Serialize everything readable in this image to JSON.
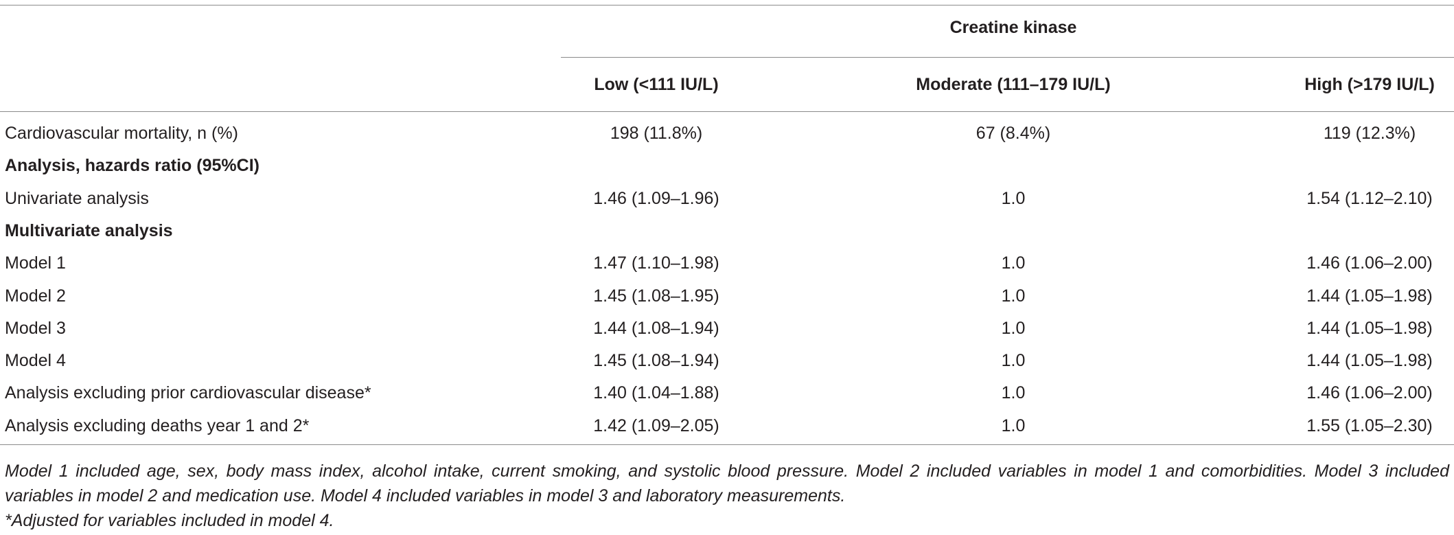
{
  "table": {
    "group_header": "Creatine kinase",
    "columns": [
      "Low (<111 IU/L)",
      "Moderate (111–179 IU/L)",
      "High (>179 IU/L)"
    ],
    "rows": [
      {
        "label": "Cardiovascular mortality, n (%)",
        "cells": [
          "198 (11.8%)",
          "67 (8.4%)",
          "119 (12.3%)"
        ]
      },
      {
        "section": "Analysis, hazards ratio (95%CI)"
      },
      {
        "label": "Univariate analysis",
        "cells": [
          "1.46 (1.09–1.96)",
          "1.0",
          "1.54 (1.12–2.10)"
        ]
      },
      {
        "section": "Multivariate analysis"
      },
      {
        "label": "Model 1",
        "cells": [
          "1.47 (1.10–1.98)",
          "1.0",
          "1.46 (1.06–2.00)"
        ]
      },
      {
        "label": "Model 2",
        "cells": [
          "1.45 (1.08–1.95)",
          "1.0",
          "1.44 (1.05–1.98)"
        ]
      },
      {
        "label": "Model 3",
        "cells": [
          "1.44 (1.08–1.94)",
          "1.0",
          "1.44 (1.05–1.98)"
        ]
      },
      {
        "label": "Model 4",
        "cells": [
          "1.45 (1.08–1.94)",
          "1.0",
          "1.44 (1.05–1.98)"
        ]
      },
      {
        "label": "Analysis excluding prior cardiovascular disease*",
        "cells": [
          "1.40 (1.04–1.88)",
          "1.0",
          "1.46 (1.06–2.00)"
        ]
      },
      {
        "label": "Analysis excluding deaths year 1 and 2*",
        "cells": [
          "1.42 (1.09–2.05)",
          "1.0",
          "1.55 (1.05–2.30)"
        ]
      }
    ],
    "footnotes": [
      "Model 1 included age, sex, body mass index, alcohol intake, current smoking, and systolic blood pressure. Model 2 included variables in model 1 and comorbidities. Model 3 included variables in model 2 and medication use. Model 4 included variables in model 3 and laboratory measurements.",
      "*Adjusted for variables included in model 4."
    ]
  }
}
